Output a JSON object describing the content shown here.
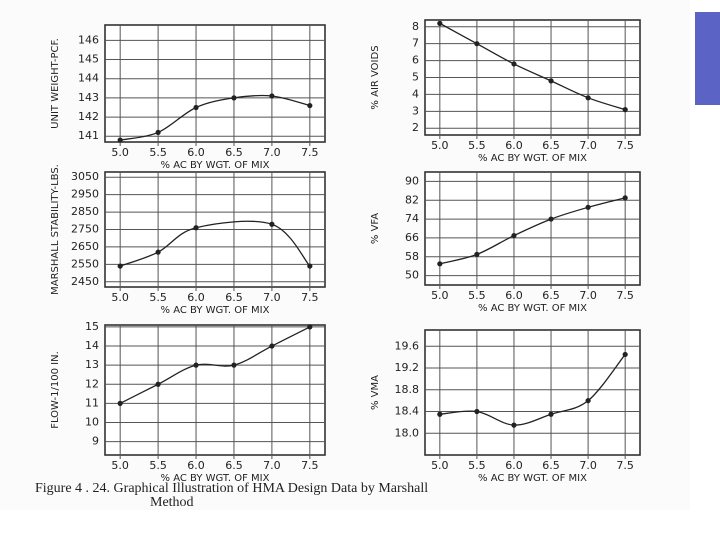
{
  "chart_data": [
    {
      "type": "line",
      "y_label": "UNIT WEIGHT-PCF.",
      "x_label": "% AC BY WGT. OF MIX",
      "x": [
        5.0,
        5.5,
        6.0,
        6.5,
        7.0,
        7.5
      ],
      "values": [
        140.8,
        141.2,
        142.5,
        143.0,
        143.1,
        142.6
      ],
      "xlim": [
        4.8,
        7.7
      ],
      "xticks": [
        {
          "value": 5,
          "label": "5.0"
        },
        5.5,
        {
          "value": 6,
          "label": "6.0"
        },
        6.5,
        {
          "value": 7,
          "label": "7.0"
        },
        7.5
      ],
      "ylim": [
        140.7,
        146.8
      ],
      "yticks": [
        141,
        142,
        143,
        144,
        145,
        146
      ],
      "color": "#222",
      "grid": true
    },
    {
      "type": "line",
      "y_label": "% AIR VOIDS",
      "x_label": "% AC BY WGT. OF MIX",
      "x": [
        5.0,
        5.5,
        6.0,
        6.5,
        7.0,
        7.5
      ],
      "values": [
        8.2,
        7.0,
        5.8,
        4.8,
        3.8,
        3.1
      ],
      "xlim": [
        4.8,
        7.7
      ],
      "xticks": [
        {
          "value": 5,
          "label": "5.0"
        },
        5.5,
        {
          "value": 6,
          "label": "6.0"
        },
        6.5,
        {
          "value": 7,
          "label": "7.0"
        },
        7.5
      ],
      "ylim": [
        1.6,
        8.4
      ],
      "yticks": [
        2,
        3,
        4,
        5,
        6,
        7,
        8
      ],
      "color": "#222",
      "grid": true
    },
    {
      "type": "line",
      "y_label": "MARSHALL STABILITY-LBS.",
      "x_label": "% AC BY WGT. OF MIX",
      "x": [
        5.0,
        5.5,
        6.0,
        6.5,
        7.0,
        7.5
      ],
      "values": [
        2540,
        2620,
        2760,
        null,
        2780,
        2540
      ],
      "xlim": [
        4.8,
        7.7
      ],
      "xticks": [
        {
          "value": 5,
          "label": "5.0"
        },
        5.5,
        {
          "value": 6,
          "label": "6.0"
        },
        6.5,
        {
          "value": 7,
          "label": "7.0"
        },
        7.5
      ],
      "ylim": [
        2420,
        3080
      ],
      "yticks": [
        2450,
        2550,
        2650,
        2750,
        2850,
        2950,
        3050
      ],
      "color": "#222",
      "grid": true
    },
    {
      "type": "line",
      "y_label": "% VFA",
      "x_label": "% AC BY WGT. OF MIX",
      "x": [
        5.0,
        5.5,
        6.0,
        6.5,
        7.0,
        7.5
      ],
      "values": [
        55,
        59,
        67,
        74,
        79,
        83
      ],
      "xlim": [
        4.8,
        7.7
      ],
      "xticks": [
        {
          "value": 5,
          "label": "5.0"
        },
        5.5,
        {
          "value": 6,
          "label": "6.0"
        },
        6.5,
        {
          "value": 7,
          "label": "7.0"
        },
        7.5
      ],
      "ylim": [
        46,
        94
      ],
      "yticks": [
        50,
        58,
        66,
        74,
        82,
        90
      ],
      "color": "#222",
      "grid": true
    },
    {
      "type": "line",
      "y_label": "FLOW-1/100 IN.",
      "x_label": "% AC BY WGT. OF MIX",
      "x": [
        5.0,
        5.5,
        6.0,
        6.5,
        7.0,
        7.5
      ],
      "values": [
        11,
        12,
        13,
        13,
        14,
        15
      ],
      "xlim": [
        4.8,
        7.7
      ],
      "xticks": [
        {
          "value": 5,
          "label": "5.0"
        },
        5.5,
        {
          "value": 6,
          "label": "6.0"
        },
        6.5,
        {
          "value": 7,
          "label": "7.0"
        },
        7.5
      ],
      "ylim": [
        8.3,
        15.1
      ],
      "yticks": [
        9,
        10,
        11,
        12,
        13,
        14,
        15
      ],
      "color": "#222",
      "grid": true
    },
    {
      "type": "line",
      "y_label": "% VMA",
      "x_label": "% AC BY WGT. OF MIX",
      "x": [
        5.0,
        5.5,
        6.0,
        6.5,
        7.0,
        7.5
      ],
      "values": [
        18.35,
        18.4,
        18.15,
        18.35,
        18.6,
        19.45
      ],
      "xlim": [
        4.8,
        7.7
      ],
      "xticks": [
        {
          "value": 5,
          "label": "5.0"
        },
        5.5,
        {
          "value": 6,
          "label": "6.0"
        },
        6.5,
        {
          "value": 7,
          "label": "7.0"
        },
        7.5
      ],
      "ylim": [
        17.6,
        19.9
      ],
      "yticks": [
        {
          "value": 18,
          "label": "18.0"
        },
        18.4,
        18.8,
        19.2,
        19.6
      ],
      "color": "#222",
      "grid": true
    }
  ],
  "figure_caption": [
    "Figure 4 . 24. Graphical Illustration of HMA Design Data by Marshall",
    "Method"
  ]
}
